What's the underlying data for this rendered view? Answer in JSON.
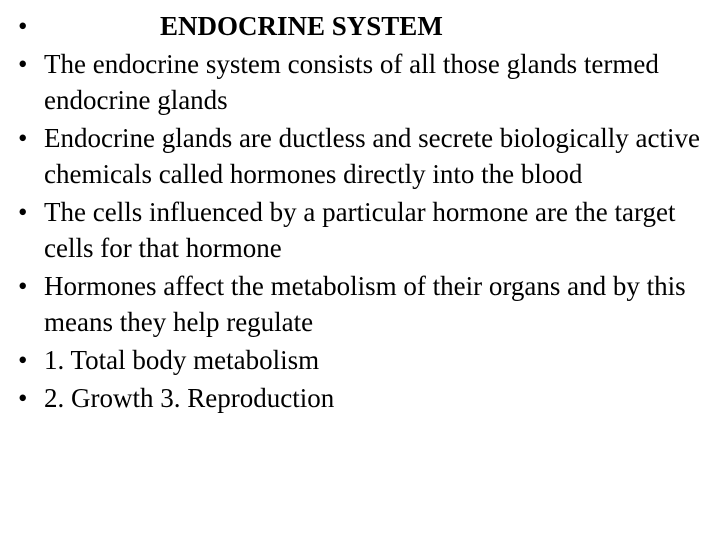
{
  "slide": {
    "background_color": "#ffffff",
    "text_color": "#000000",
    "font_family": "Times New Roman",
    "body_fontsize": 27,
    "title_fontsize": 27,
    "line_height": 36,
    "bullets": [
      {
        "text": "ENDOCRINE SYSTEM",
        "is_title": true
      },
      {
        "text": "The endocrine system consists of all those glands termed endocrine glands",
        "is_title": false
      },
      {
        "text": "Endocrine glands are ductless and secrete biologically active chemicals called hormones directly into the blood",
        "is_title": false
      },
      {
        "text": "The cells influenced by a particular hormone are the target cells for that hormone",
        "is_title": false
      },
      {
        "text": "Hormones affect the metabolism of their organs and by this means they help regulate",
        "is_title": false
      },
      {
        "text": "1. Total body metabolism",
        "is_title": false
      },
      {
        "text": "2. Growth    3. Reproduction",
        "is_title": false
      }
    ],
    "bullet_char": "•"
  }
}
